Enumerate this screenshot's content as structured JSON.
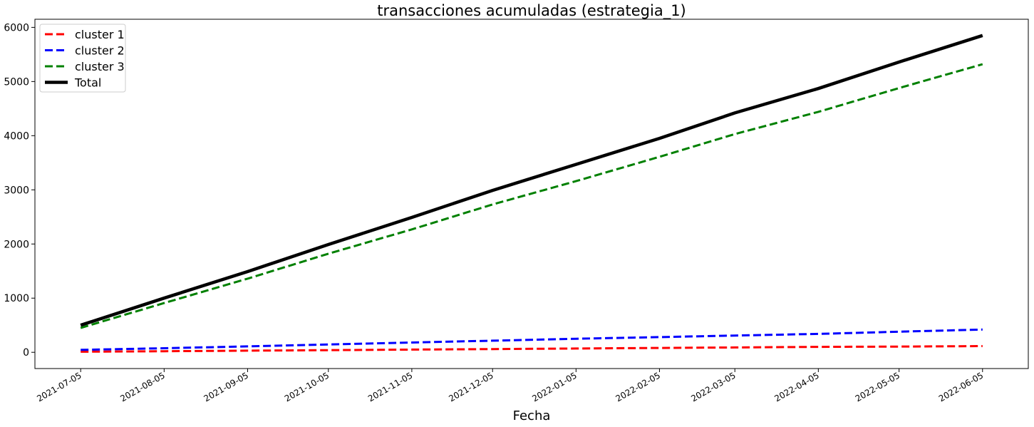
{
  "chart_data": {
    "type": "line",
    "title": "transacciones acumuladas (estrategia_1)",
    "xlabel": "Fecha",
    "ylabel": "",
    "x": [
      "2021-07-05",
      "2021-08-05",
      "2021-09-05",
      "2021-10-05",
      "2021-11-05",
      "2021-12-05",
      "2022-01-05",
      "2022-02-05",
      "2022-03-05",
      "2022-04-05",
      "2022-05-05",
      "2022-06-05"
    ],
    "xticks": [
      "2021-07-05",
      "2021-08-05",
      "2021-09-05",
      "2021-10-05",
      "2021-11-05",
      "2021-12-05",
      "2022-01-05",
      "2022-02-05",
      "2022-03-05",
      "2022-04-05",
      "2022-05-05",
      "2022-06-05"
    ],
    "yticks": [
      0,
      1000,
      2000,
      3000,
      4000,
      5000,
      6000
    ],
    "ylim": [
      -300,
      6150
    ],
    "xlim": [
      "2021-06-18",
      "2022-06-22"
    ],
    "grid": false,
    "legend_position": "top-left",
    "series": [
      {
        "name": "cluster 1",
        "color": "#ff0000",
        "style": "dashed",
        "values": [
          10,
          20,
          30,
          40,
          50,
          60,
          70,
          80,
          90,
          100,
          105,
          115
        ]
      },
      {
        "name": "cluster 2",
        "color": "#0000ff",
        "style": "dashed",
        "values": [
          45,
          75,
          110,
          145,
          180,
          215,
          250,
          280,
          310,
          340,
          380,
          420
        ]
      },
      {
        "name": "cluster 3",
        "color": "#008000",
        "style": "dashed",
        "values": [
          450,
          910,
          1360,
          1820,
          2270,
          2730,
          3160,
          3610,
          4030,
          4440,
          4880,
          5320
        ]
      },
      {
        "name": "Total",
        "color": "#000000",
        "style": "solid",
        "values": [
          500,
          1000,
          1490,
          1990,
          2490,
          2990,
          3470,
          3950,
          4420,
          4870,
          5360,
          5850
        ]
      }
    ]
  }
}
